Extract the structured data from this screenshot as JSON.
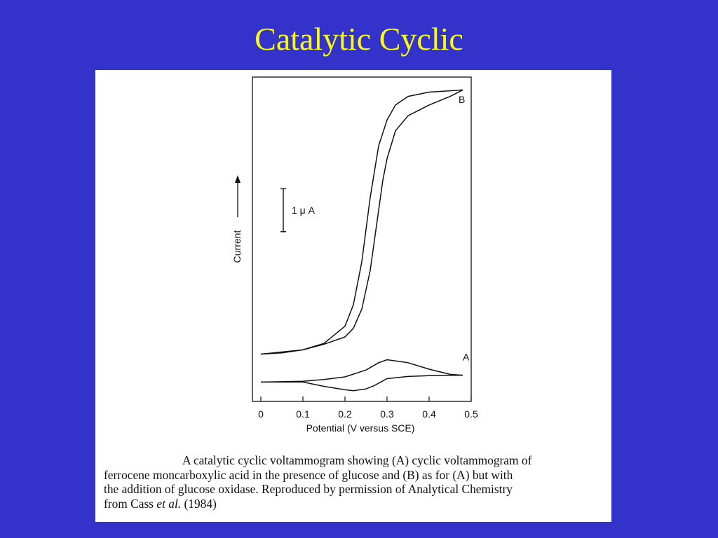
{
  "slide": {
    "title": "Catalytic Cyclic",
    "background_color": "#3333cc",
    "title_color": "#ffff00",
    "panel_color": "#ffffff"
  },
  "chart_data": {
    "type": "line",
    "xlabel": "Potential (V versus SCE)",
    "ylabel": "Current",
    "xlim": [
      -0.02,
      0.5
    ],
    "ylim": [
      -0.45,
      7.1
    ],
    "x_ticks": [
      0,
      0.1,
      0.2,
      0.3,
      0.4,
      0.5
    ],
    "x_tick_labels": [
      "0",
      "0.1",
      "0.2",
      "0.3",
      "0.4",
      "0.5"
    ],
    "grid": false,
    "legend": "none",
    "scale_bar": {
      "label": "1 μ A",
      "value": 1
    },
    "series": [
      {
        "name": "A",
        "label_at": [
          0.48,
          0.5
        ],
        "forward": {
          "x": [
            0.0,
            0.1,
            0.15,
            0.2,
            0.25,
            0.28,
            0.3,
            0.35,
            0.4,
            0.45,
            0.48
          ],
          "y": [
            0.0,
            0.02,
            0.06,
            0.12,
            0.28,
            0.45,
            0.52,
            0.45,
            0.3,
            0.18,
            0.16
          ]
        },
        "reverse": {
          "x": [
            0.48,
            0.4,
            0.35,
            0.3,
            0.27,
            0.25,
            0.22,
            0.2,
            0.15,
            0.1,
            0.05,
            0.0
          ],
          "y": [
            0.16,
            0.15,
            0.13,
            0.08,
            -0.08,
            -0.16,
            -0.2,
            -0.18,
            -0.1,
            0.0,
            0.0,
            0.0
          ]
        }
      },
      {
        "name": "B",
        "label_at": [
          0.47,
          6.5
        ],
        "forward": {
          "x": [
            0.0,
            0.1,
            0.15,
            0.2,
            0.22,
            0.24,
            0.26,
            0.28,
            0.3,
            0.32,
            0.35,
            0.4,
            0.45,
            0.48
          ],
          "y": [
            0.65,
            0.75,
            0.9,
            1.3,
            1.8,
            2.8,
            4.3,
            5.5,
            6.1,
            6.45,
            6.65,
            6.75,
            6.78,
            6.8
          ]
        },
        "reverse": {
          "x": [
            0.48,
            0.45,
            0.4,
            0.35,
            0.32,
            0.3,
            0.29,
            0.28,
            0.26,
            0.24,
            0.22,
            0.2,
            0.15,
            0.1,
            0.05,
            0.0
          ],
          "y": [
            6.8,
            6.65,
            6.45,
            6.2,
            5.85,
            5.2,
            4.7,
            4.0,
            2.6,
            1.7,
            1.25,
            1.05,
            0.88,
            0.75,
            0.68,
            0.65
          ]
        }
      }
    ]
  },
  "caption": {
    "line1": "A catalytic cyclic voltammogram showing (A) cyclic voltammogram of",
    "line2": "ferrocene moncarboxylic acid in the presence of glucose and (B) as for (A) but with",
    "line3": "the addition of glucose oxidase. Reproduced by permission of Analytical Chemistry",
    "line4_start": "from Cass ",
    "line4_italic": "et al.",
    "line4_end": " (1984)"
  }
}
